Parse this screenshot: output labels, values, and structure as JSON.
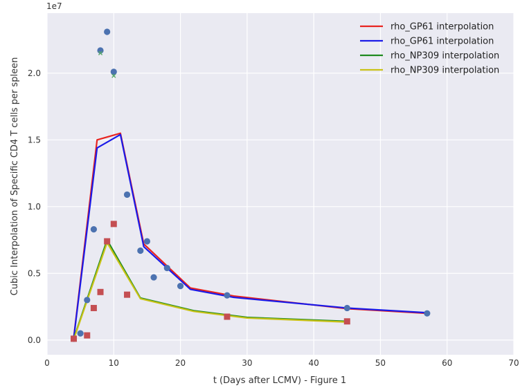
{
  "chart_data": {
    "type": "line",
    "xlabel": "t (Days after LCMV) - Figure 1",
    "ylabel": "Cubic Interpolation of Specific CD4  T cells per spleen",
    "y_offset_label": "1e7",
    "xlim": [
      0,
      70
    ],
    "ylim": [
      -1100000,
      24500000
    ],
    "xticks": [
      0,
      10,
      20,
      30,
      40,
      50,
      60,
      70
    ],
    "xtick_labels": [
      "0",
      "10",
      "20",
      "30",
      "40",
      "50",
      "60",
      "70"
    ],
    "yticks": [
      0,
      5000000,
      10000000,
      15000000,
      20000000
    ],
    "ytick_labels": [
      "0.0",
      "0.5",
      "1.0",
      "1.5",
      "2.0"
    ],
    "grid": true,
    "legend_position": "top-right",
    "series": [
      {
        "name": "rho_GP61 interpolation",
        "kind": "line",
        "color": "#e8231f",
        "x": [
          4,
          7.5,
          11,
          14.5,
          21.5,
          28,
          45,
          57
        ],
        "y": [
          200000,
          15000000,
          15500000,
          7200000,
          3900000,
          3300000,
          2350000,
          2000000
        ]
      },
      {
        "name": "rho_GP61 interpolation",
        "kind": "line",
        "color": "#1a1ae8",
        "x": [
          4,
          7.5,
          11,
          14.5,
          21.5,
          28,
          45,
          57
        ],
        "y": [
          150000,
          14400000,
          15400000,
          7000000,
          3800000,
          3200000,
          2400000,
          2050000
        ]
      },
      {
        "name": "rho_NP309 interpolation",
        "kind": "line",
        "color": "#1e8a1e",
        "x": [
          4,
          9,
          14,
          22,
          30,
          45
        ],
        "y": [
          100000,
          7500000,
          3150000,
          2200000,
          1700000,
          1400000
        ]
      },
      {
        "name": "rho_NP309 interpolation",
        "kind": "line",
        "color": "#c9c217",
        "x": [
          4,
          9,
          14,
          22,
          30,
          45
        ],
        "y": [
          50000,
          7300000,
          3100000,
          2150000,
          1650000,
          1350000
        ]
      },
      {
        "kind": "scatter-circle",
        "color": "#4c72b0",
        "x": [
          4,
          5,
          6,
          7,
          8,
          9,
          10,
          12,
          14,
          15,
          16,
          18,
          20,
          27,
          45,
          57
        ],
        "y": [
          100000,
          500000,
          3000000,
          8300000,
          21700000,
          23100000,
          20100000,
          10900000,
          6700000,
          7400000,
          4700000,
          5400000,
          4050000,
          3350000,
          2400000,
          2000000
        ]
      },
      {
        "kind": "scatter-square",
        "color": "#c44e52",
        "x": [
          4,
          6,
          7,
          8,
          9,
          10,
          12,
          27,
          45
        ],
        "y": [
          100000,
          350000,
          2400000,
          3600000,
          7400000,
          8700000,
          3400000,
          1750000,
          1400000
        ]
      },
      {
        "kind": "scatter-x",
        "color": "#55a868",
        "x": [
          8,
          10
        ],
        "y": [
          21500000,
          19800000
        ]
      }
    ]
  }
}
